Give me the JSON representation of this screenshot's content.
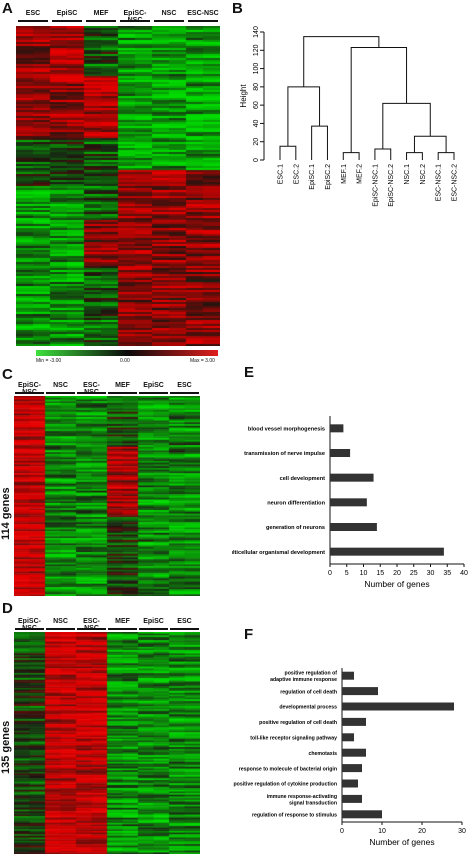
{
  "panels": {
    "A": "A",
    "B": "B",
    "C": "C",
    "D": "D",
    "E": "E",
    "F": "F"
  },
  "heatmapA": {
    "columns": [
      "ESC",
      "EpiSC",
      "MEF",
      "EpiSC-NSC",
      "NSC",
      "ESC-NSC"
    ],
    "scale": {
      "min": "Min = -3.00",
      "mid": "0.00",
      "max": "Max = 3.00"
    }
  },
  "heatmapC": {
    "columns": [
      "EpiSC-NSC",
      "NSC",
      "ESC-NSC",
      "MEF",
      "EpiSC",
      "ESC"
    ],
    "side_label": "114 genes"
  },
  "heatmapD": {
    "columns": [
      "EpiSC-NSC",
      "NSC",
      "ESC-NSC",
      "MEF",
      "EpiSC",
      "ESC"
    ],
    "side_label": "135 genes"
  },
  "colors": {
    "red": "#d81e1e",
    "green": "#37c837",
    "black": "#000000",
    "bar": "#333333"
  },
  "chart_data": [
    {
      "type": "dendrogram",
      "ylabel": "Height",
      "ylim": [
        0,
        140
      ],
      "yticks": [
        0,
        20,
        40,
        60,
        80,
        100,
        120,
        140
      ],
      "leaves": [
        "ESC.1",
        "ESC.2",
        "EpiSC.1",
        "EpiSC.2",
        "MEF.1",
        "MEF.2",
        "EpiSC-NSC.1",
        "EpiSC-NSC.2",
        "NSC.1",
        "NSC.2",
        "ESC-NSC.1",
        "ESC-NSC.2"
      ],
      "merges": [
        {
          "a": 0,
          "b": 1,
          "height": 15
        },
        {
          "a": 2,
          "b": 3,
          "height": 37
        },
        {
          "a": 4,
          "b": 5,
          "height": 8
        },
        {
          "a": 6,
          "b": 7,
          "height": 12
        },
        {
          "a": 8,
          "b": 9,
          "height": 8
        },
        {
          "a": 10,
          "b": 11,
          "height": 8
        }
      ]
    },
    {
      "type": "bar",
      "orientation": "horizontal",
      "categories": [
        "blood vessel morphogenesis",
        "transmission of nerve impulse",
        "cell development",
        "neuron differentiation",
        "generation of neurons",
        "multicellular organismal development"
      ],
      "values": [
        4,
        6,
        13,
        11,
        14,
        34
      ],
      "xlabel": "Number of genes",
      "xlim": [
        0,
        40
      ],
      "xticks": [
        "0",
        "5",
        "10",
        "15",
        "20",
        "25",
        "30",
        "35",
        "40"
      ]
    },
    {
      "type": "bar",
      "orientation": "horizontal",
      "categories": [
        "positive regulation of adaptive immune response",
        "regulation of cell death",
        "developmental process",
        "positive regulation of cell death",
        "toll-like receptor signaling pathway",
        "chemotaxis",
        "response to molecule of bacterial origin",
        "positive regulation of cytokine production",
        "immune response-activating signal transduction",
        "regulation of response to stimulus"
      ],
      "values": [
        3,
        9,
        28,
        6,
        3,
        6,
        5,
        4,
        5,
        10
      ],
      "xlabel": "Number of genes",
      "xlim": [
        0,
        30
      ],
      "xticks": [
        "0",
        "10",
        "20",
        "30"
      ]
    }
  ]
}
